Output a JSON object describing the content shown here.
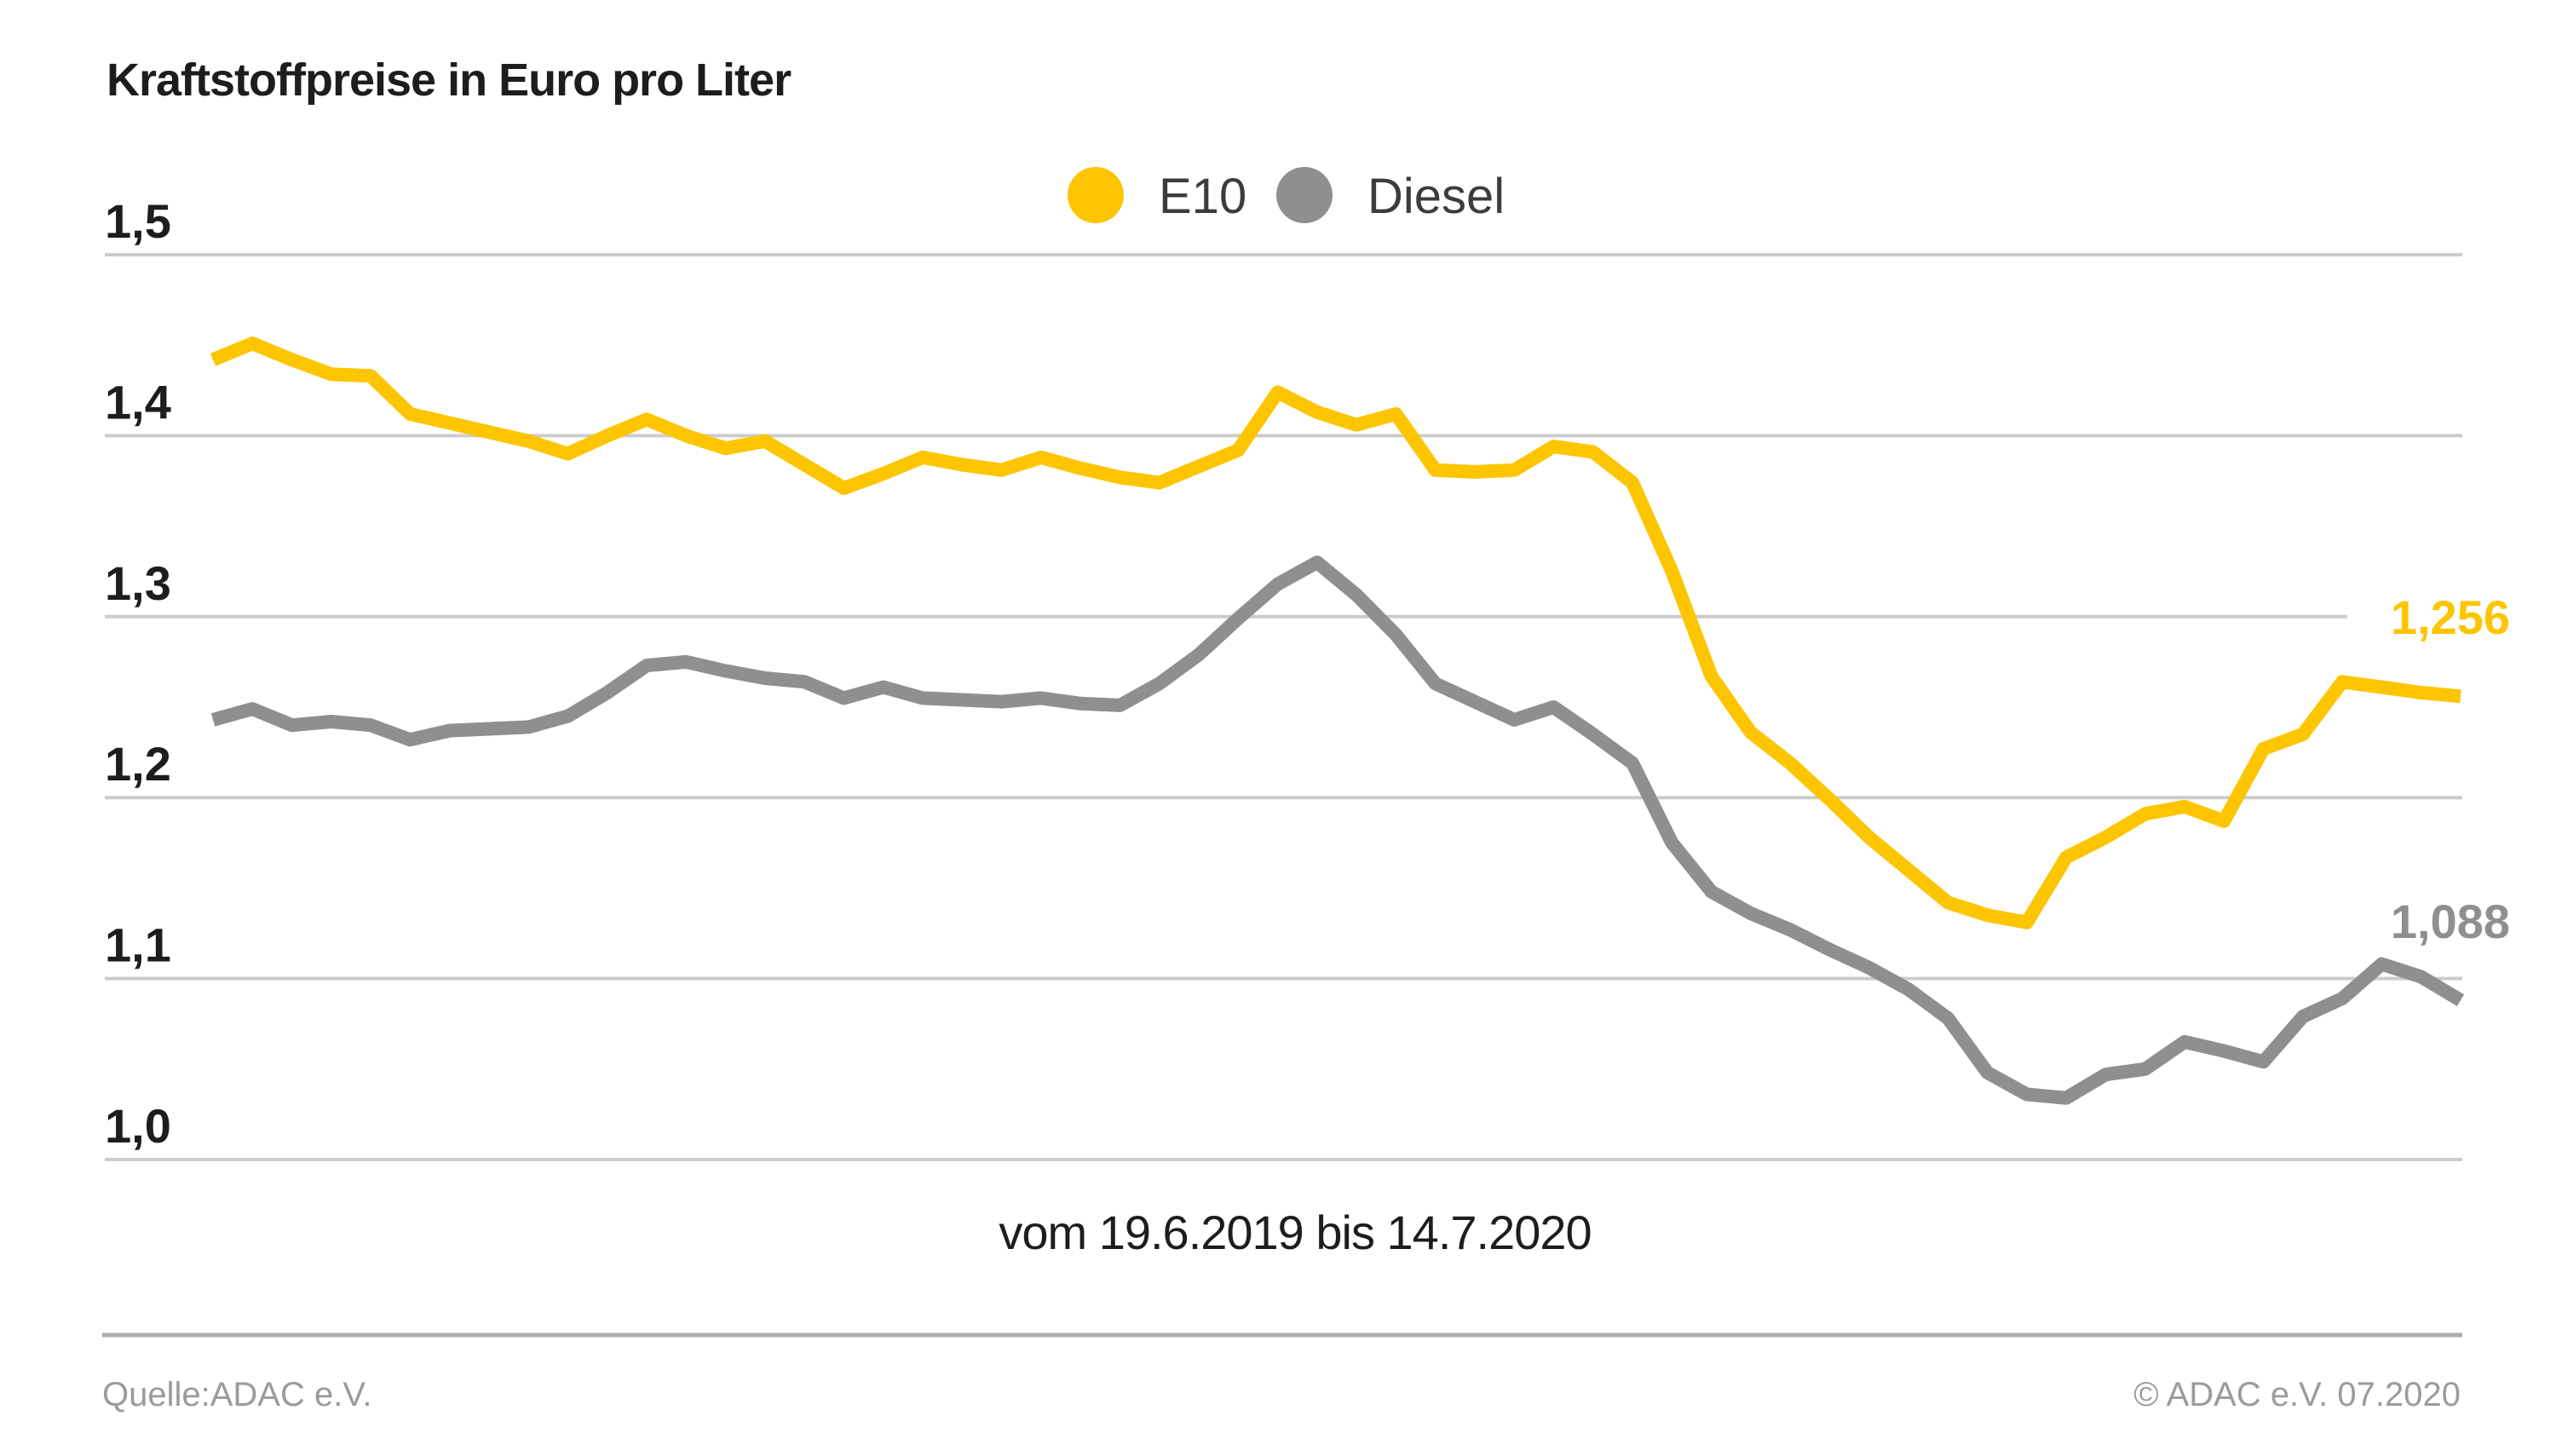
{
  "title": "Kraftstoffpreise in Euro pro Liter",
  "legend": {
    "items": [
      {
        "label": "E10",
        "color": "#fdc500"
      },
      {
        "label": "Diesel",
        "color": "#8f8f8f"
      }
    ]
  },
  "y_axis": {
    "tick_labels": [
      "1,5",
      "1,4",
      "1,3",
      "1,2",
      "1,1",
      "1,0"
    ],
    "tick_values": [
      1.5,
      1.4,
      1.3,
      1.2,
      1.1,
      1.0
    ]
  },
  "caption": "vom 19.6.2019 bis 14.7.2020",
  "end_labels": {
    "e10": "1,256",
    "diesel": "1,088"
  },
  "footer": {
    "source": "Quelle:ADAC e.V.",
    "copyright": "© ADAC e.V. 07.2020"
  },
  "colors": {
    "e10": "#fdc500",
    "diesel": "#8f8f8f",
    "grid": "#cccccc",
    "text": "#1d1d1b",
    "legend_text": "#3c3c3c",
    "footer_text": "#9b9b9b",
    "footer_rule": "#adadad",
    "background": "#ffffff"
  },
  "chart_data": {
    "type": "line",
    "title": "Kraftstoffpreise in Euro pro Liter",
    "xlabel": "vom 19.6.2019 bis 14.7.2020",
    "ylabel": "Euro pro Liter",
    "x_start_date": "19.6.2019",
    "x_end_date": "14.7.2020",
    "x_interval": "weekly",
    "ylim": [
      1.0,
      1.5
    ],
    "yticks": [
      1.5,
      1.4,
      1.3,
      1.2,
      1.1,
      1.0
    ],
    "grid": "horizontal",
    "legend_position": "top-center",
    "series": [
      {
        "name": "E10",
        "color": "#fdc500",
        "end_label": "1,256",
        "last_value": 1.256,
        "values": [
          1.442,
          1.451,
          1.442,
          1.434,
          1.433,
          1.412,
          1.407,
          1.402,
          1.397,
          1.39,
          1.4,
          1.409,
          1.4,
          1.393,
          1.397,
          1.384,
          1.371,
          1.379,
          1.388,
          1.384,
          1.381,
          1.388,
          1.382,
          1.377,
          1.374,
          1.383,
          1.392,
          1.424,
          1.413,
          1.406,
          1.412,
          1.381,
          1.38,
          1.381,
          1.394,
          1.391,
          1.374,
          1.325,
          1.267,
          1.236,
          1.219,
          1.199,
          1.178,
          1.16,
          1.142,
          1.135,
          1.131,
          1.167,
          1.178,
          1.191,
          1.195,
          1.187,
          1.227,
          1.235,
          1.264,
          1.261,
          1.258,
          1.256
        ]
      },
      {
        "name": "Diesel",
        "color": "#8f8f8f",
        "end_label": "1,088",
        "last_value": 1.088,
        "values": [
          1.243,
          1.249,
          1.24,
          1.242,
          1.24,
          1.232,
          1.237,
          1.238,
          1.239,
          1.245,
          1.258,
          1.273,
          1.275,
          1.27,
          1.266,
          1.264,
          1.255,
          1.261,
          1.255,
          1.254,
          1.253,
          1.255,
          1.252,
          1.251,
          1.263,
          1.279,
          1.299,
          1.318,
          1.33,
          1.312,
          1.29,
          1.263,
          1.253,
          1.243,
          1.25,
          1.235,
          1.219,
          1.175,
          1.148,
          1.136,
          1.127,
          1.116,
          1.106,
          1.094,
          1.078,
          1.048,
          1.036,
          1.034,
          1.047,
          1.05,
          1.065,
          1.06,
          1.054,
          1.079,
          1.089,
          1.108,
          1.101,
          1.088
        ]
      }
    ]
  }
}
